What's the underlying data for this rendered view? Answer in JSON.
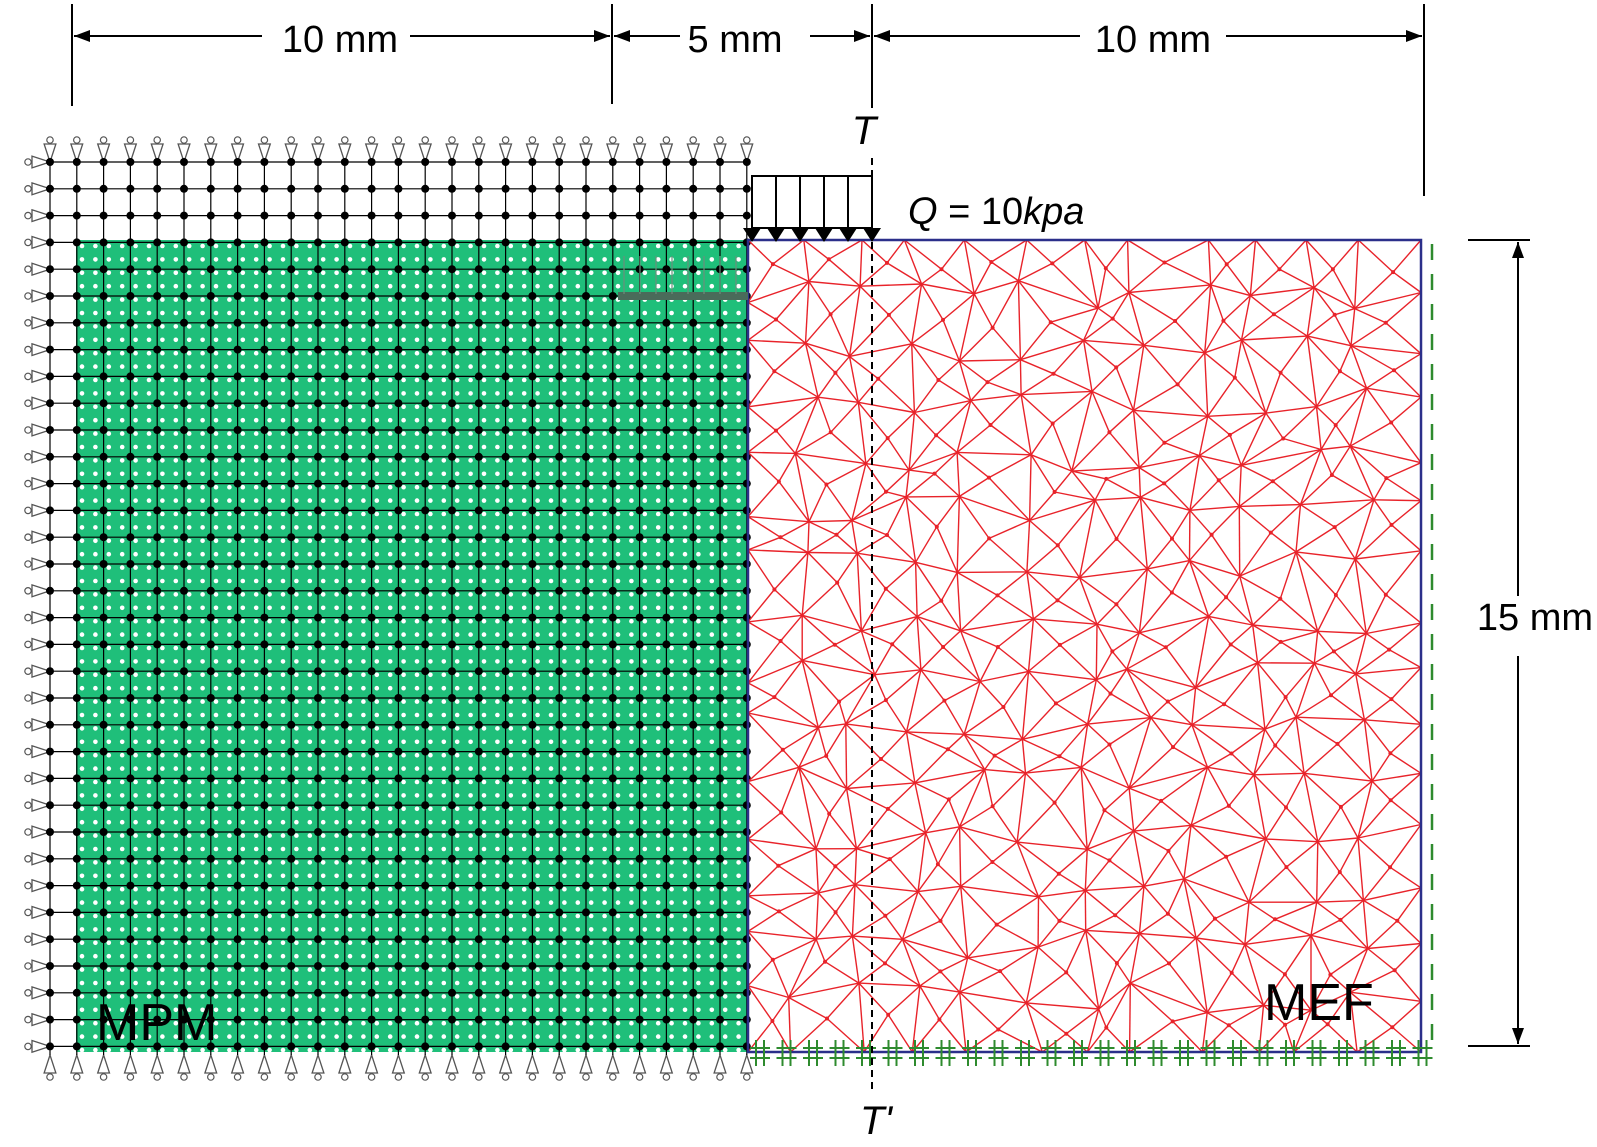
{
  "dimensions": {
    "left_width": "10 mm",
    "middle_width": "5 mm",
    "right_width": "10 mm",
    "height": "15 mm"
  },
  "section": {
    "top": "T",
    "bottom": "T'"
  },
  "load": {
    "q": "Q",
    "eq": " = 10",
    "unit": "kpa"
  },
  "regions": {
    "mpm": "MPM",
    "mef": "MEF"
  },
  "colors": {
    "mpm_fill": "#1fbf7a",
    "mpm_particle": "#ffffff",
    "grid_node": "#000000",
    "fem_mesh": "#e8232a",
    "fem_boundary": "#2b2f8a",
    "fem_support": "#2e8b2e",
    "support_symbol": "#555555"
  }
}
